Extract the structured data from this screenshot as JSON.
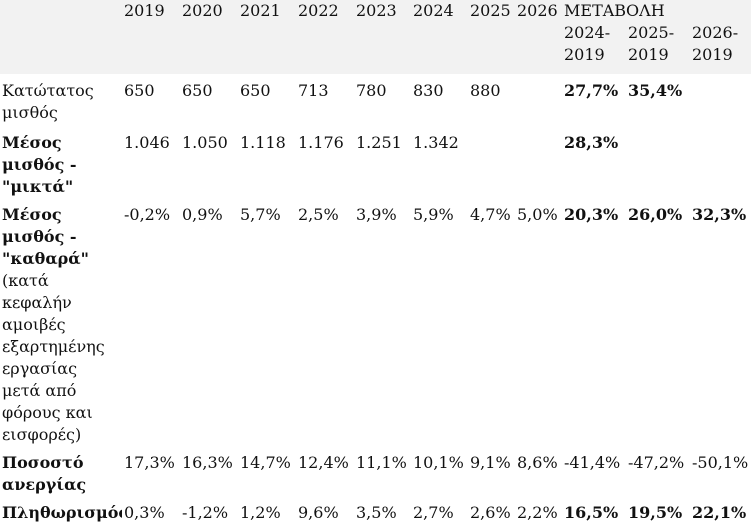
{
  "header": {
    "years": [
      "2019",
      "2020",
      "2021",
      "2022",
      "2023",
      "2024",
      "2025",
      "2026"
    ],
    "change_title": "ΜΕΤΑΒΟΛΗ",
    "change_periods": [
      "2024-\n2019",
      "2025-\n2019",
      "2026-\n2019"
    ]
  },
  "rows": [
    {
      "label": "Κατώτατος μισθός",
      "values": [
        "650",
        "650",
        "650",
        "713",
        "780",
        "830",
        "880",
        ""
      ],
      "changes": [
        "27,7%",
        "35,4%",
        ""
      ]
    },
    {
      "label": "Μέσος μισθός - \"μικτά\"",
      "values": [
        "1.046",
        "1.050",
        "1.118",
        "1.176",
        "1.251",
        "1.342",
        "",
        ""
      ],
      "changes": [
        "28,3%",
        "",
        ""
      ]
    },
    {
      "label": "Μέσος μισθός - \"καθαρά\"",
      "note": "(κατά κεφαλήν αμοιβές εξαρτημένης εργασίας μετά από φόρους και εισφορές)",
      "values": [
        "-0,2%",
        "0,9%",
        "5,7%",
        "2,5%",
        "3,9%",
        "5,9%",
        "4,7%",
        "5,0%"
      ],
      "changes": [
        "20,3%",
        "26,0%",
        "32,3%"
      ]
    },
    {
      "label": "Ποσοστό ανεργίας",
      "values": [
        "17,3%",
        "16,3%",
        "14,7%",
        "12,4%",
        "11,1%",
        "10,1%",
        "9,1%",
        "8,6%"
      ],
      "changes": [
        "-41,4%",
        "-47,2%",
        "-50,1%"
      ]
    },
    {
      "label": "Πληθωρισμός",
      "values": [
        "0,3%",
        "-1,2%",
        "1,2%",
        "9,6%",
        "3,5%",
        "2,7%",
        "2,6%",
        "2,2%"
      ],
      "changes": [
        "16,5%",
        "19,5%",
        "22,1%"
      ]
    }
  ]
}
